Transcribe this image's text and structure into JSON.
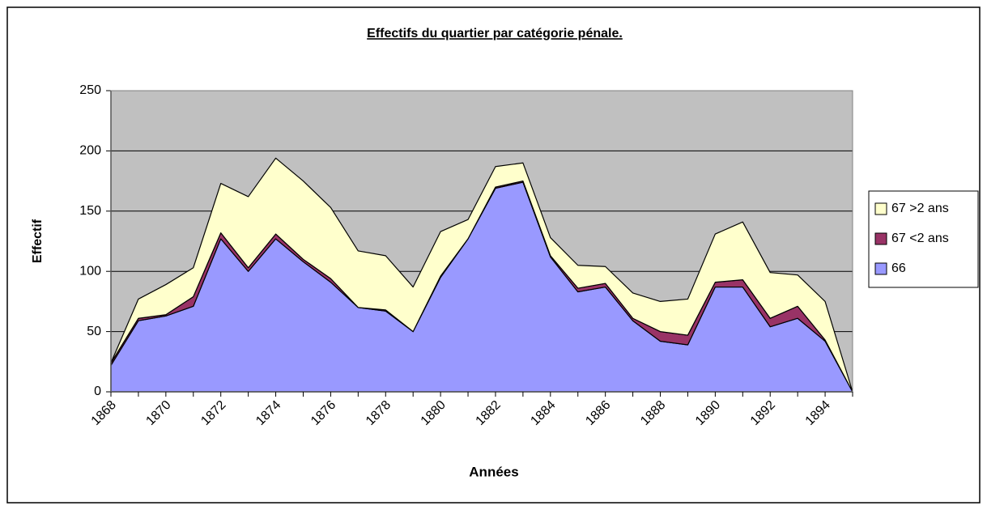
{
  "chart_data": {
    "type": "stacked_area",
    "title": "Effectifs du quartier par catégorie pénale.",
    "x_label": "Années",
    "y_label": "Effectif",
    "categories": [
      "1868",
      null,
      "1870",
      null,
      "1872",
      null,
      "1874",
      null,
      "1876",
      null,
      "1878",
      null,
      "1880",
      null,
      "1882",
      null,
      "1884",
      null,
      "1886",
      null,
      "1888",
      null,
      "1890",
      null,
      "1892",
      null,
      "1894",
      null
    ],
    "series": [
      {
        "name": "66",
        "color": "#9999ff",
        "values": [
          22,
          59,
          63,
          71,
          127,
          100,
          127,
          108,
          91,
          70,
          67,
          50,
          95,
          127,
          169,
          174,
          112,
          83,
          87,
          59,
          42,
          39,
          87,
          87,
          54,
          61,
          42,
          0
        ]
      },
      {
        "name": "67 <2 ans",
        "color": "#993366",
        "values": [
          2,
          2,
          1,
          8,
          5,
          3,
          4,
          2,
          3,
          0,
          1,
          0,
          1,
          0,
          1,
          1,
          1,
          3,
          3,
          2,
          8,
          8,
          4,
          6,
          7,
          10,
          1,
          0
        ]
      },
      {
        "name": "67 >2 ans",
        "color": "#ffffcc",
        "values": [
          0,
          16,
          25,
          24,
          41,
          59,
          63,
          65,
          59,
          47,
          45,
          37,
          37,
          16,
          17,
          15,
          15,
          19,
          14,
          21,
          25,
          30,
          40,
          48,
          38,
          26,
          32,
          0
        ]
      }
    ],
    "ylim": [
      0,
      250
    ],
    "yticks": [
      0,
      50,
      100,
      150,
      200,
      250
    ],
    "grid": true,
    "legend": "right",
    "background": "#c0c0c0"
  }
}
